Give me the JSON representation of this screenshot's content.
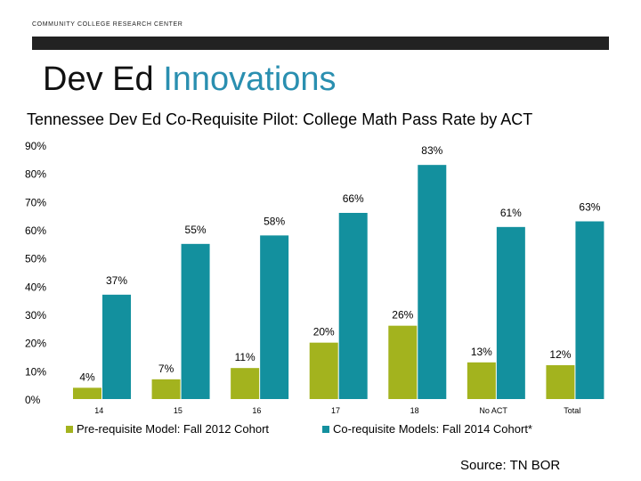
{
  "header": {
    "org": "COMMUNITY COLLEGE RESEARCH CENTER",
    "title_part1": "Dev Ed",
    "title_part2": "Innovations"
  },
  "chart_data": {
    "type": "bar",
    "title": "Tennessee Dev Ed Co-Requisite Pilot: College Math Pass Rate by ACT",
    "categories": [
      "14",
      "15",
      "16",
      "17",
      "18",
      "No ACT",
      "Total"
    ],
    "series": [
      {
        "name": "Pre-requisite Model: Fall 2012 Cohort",
        "values": [
          4,
          7,
          11,
          20,
          26,
          13,
          12
        ],
        "labels": [
          "4%",
          "7%",
          "11%",
          "20%",
          "26%",
          "13%",
          "12%"
        ],
        "color": "#a3b31e"
      },
      {
        "name": "Co-requisite Models: Fall 2014 Cohort*",
        "values": [
          37,
          55,
          58,
          66,
          83,
          61,
          63
        ],
        "labels": [
          "37%",
          "55%",
          "58%",
          "66%",
          "83%",
          "61%",
          "63%"
        ],
        "color": "#13909e"
      }
    ],
    "yticks": [
      "0%",
      "10%",
      "20%",
      "30%",
      "40%",
      "50%",
      "60%",
      "70%",
      "80%",
      "90%"
    ],
    "ylim": [
      0,
      90
    ],
    "grid": false,
    "legend": "bottom"
  },
  "source": "Source: TN BOR"
}
